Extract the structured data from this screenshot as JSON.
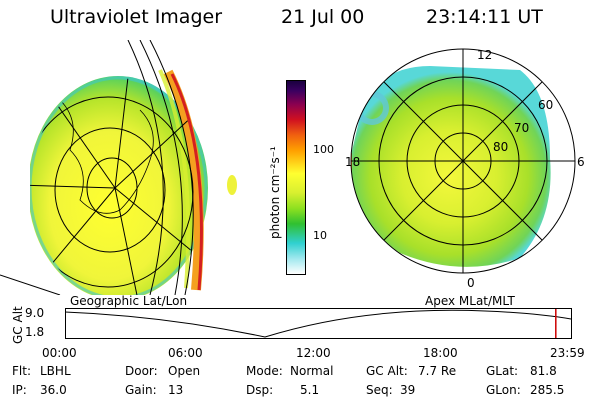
{
  "header": {
    "title": "Ultraviolet Imager",
    "date": "21 Jul 00",
    "time": "23:14:11 UT"
  },
  "colorbar": {
    "label": "photon cm⁻²s⁻¹",
    "ticks": [
      {
        "label": "100",
        "value": 100
      },
      {
        "label": "10",
        "value": 10
      }
    ]
  },
  "polar_plot": {
    "mlt_labels": [
      "12",
      "18",
      "6",
      "0"
    ],
    "lat_labels": [
      "60",
      "70",
      "80"
    ]
  },
  "panel_labels": {
    "left": "Geographic Lat/Lon",
    "right": "Apex MLat/MLT"
  },
  "timeline": {
    "ylabel": "GC Alt",
    "yticks": [
      "9.0",
      "1.8"
    ],
    "xticks": [
      "00:00",
      "06:00",
      "12:00",
      "18:00",
      "23:59"
    ],
    "current_time_fraction": 0.97
  },
  "status": {
    "filter": {
      "label": "Flt:",
      "value": "LBHL"
    },
    "ip": {
      "label": "IP:",
      "value": "36.0"
    },
    "door": {
      "label": "Door:",
      "value": "Open"
    },
    "gain": {
      "label": "Gain:",
      "value": "13"
    },
    "mode": {
      "label": "Mode:",
      "value": "Normal"
    },
    "dsp": {
      "label": "Dsp:",
      "value": "5.1"
    },
    "gc_alt": {
      "label": "GC Alt:",
      "value": "7.7 Re"
    },
    "seq": {
      "label": "Seq:",
      "value": "39"
    },
    "glat": {
      "label": "GLat:",
      "value": "81.8"
    },
    "glon": {
      "label": "GLon:",
      "value": "285.5"
    }
  },
  "colors": {
    "marker": "#cc0000"
  }
}
